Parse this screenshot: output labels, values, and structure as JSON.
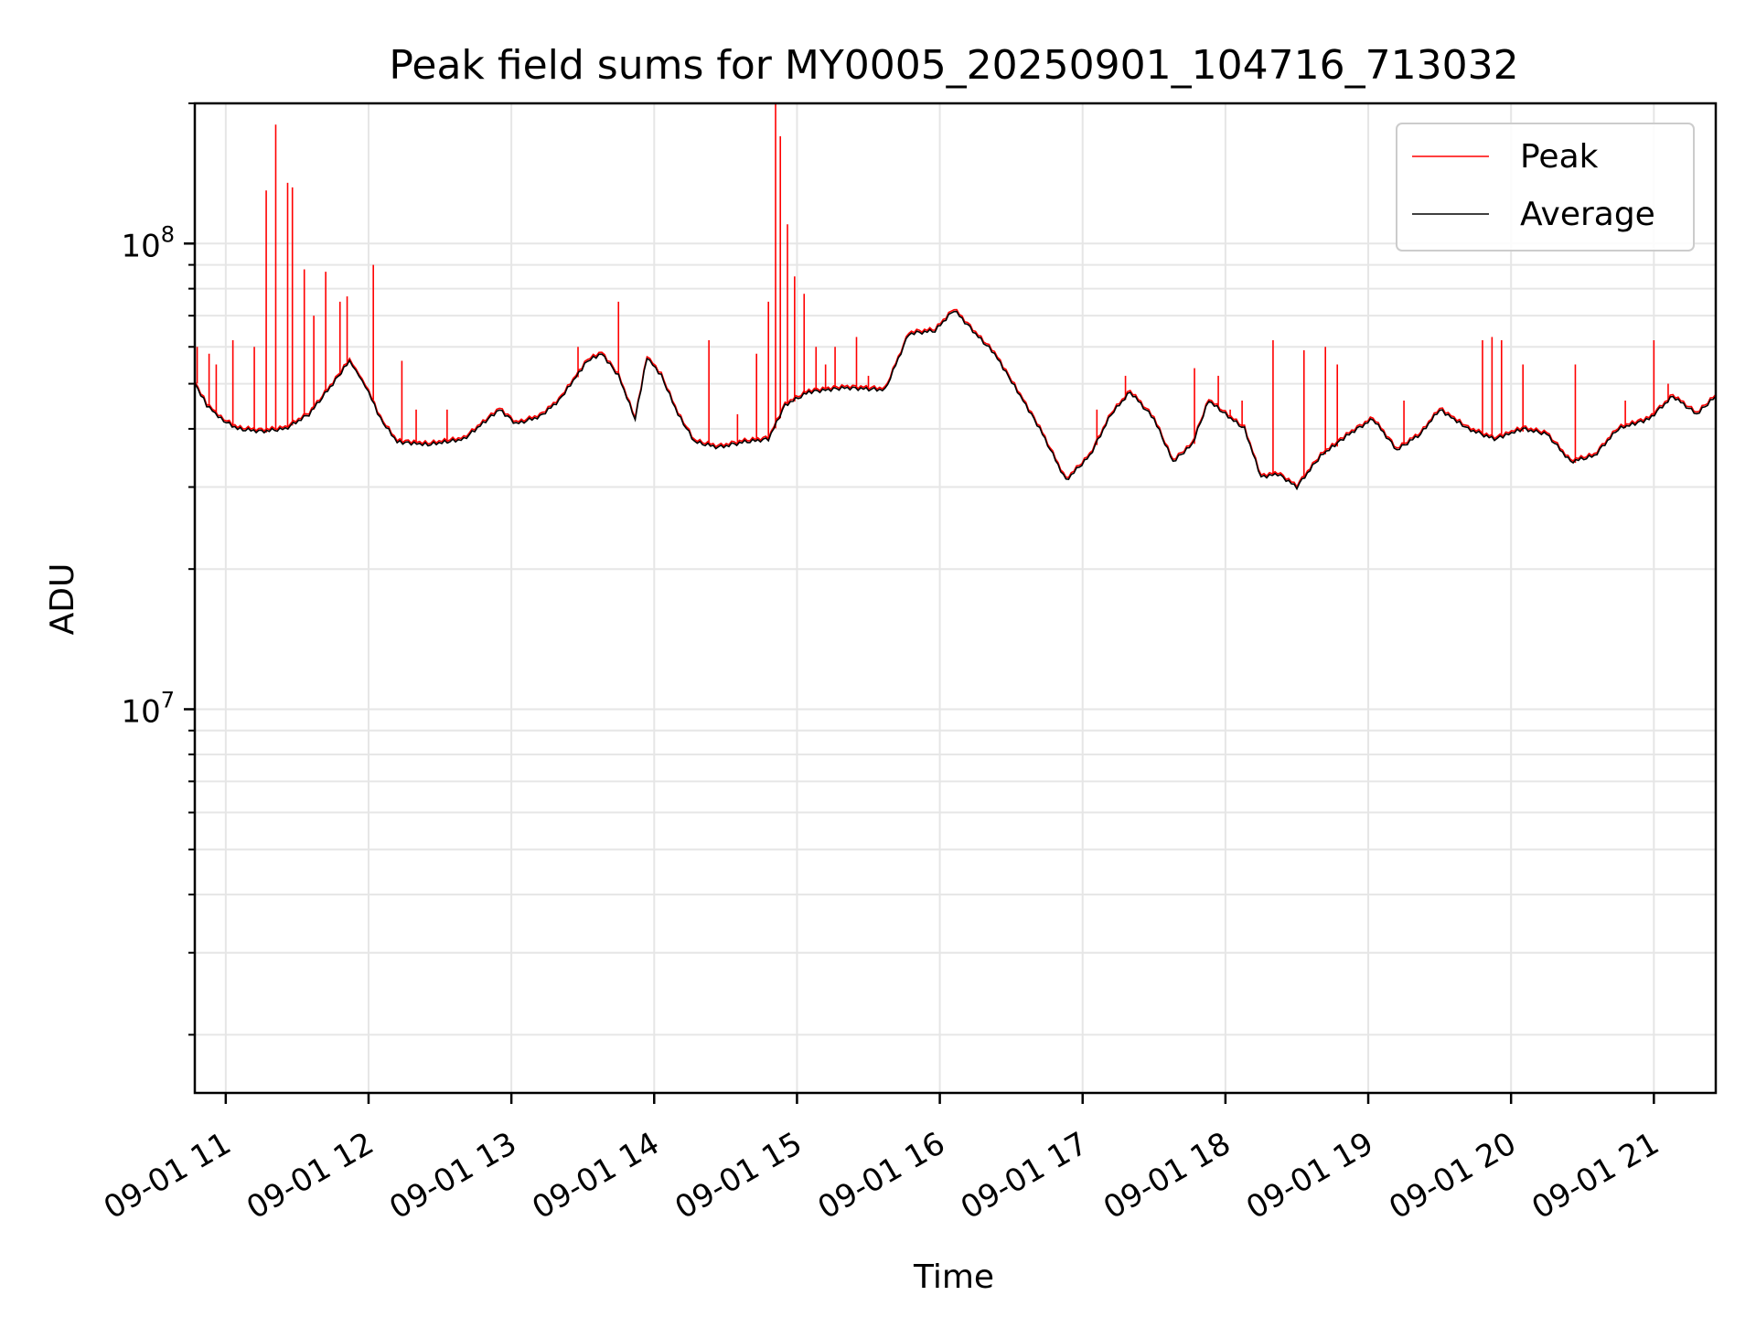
{
  "chart_data": {
    "type": "line",
    "title": "Peak field sums for MY0005_20250901_104716_713032",
    "xlabel": "Time",
    "ylabel": "ADU",
    "y_scale": "log",
    "ylim": [
      1500000,
      200000000
    ],
    "xlim": [
      "2025-09-01 10:47",
      "2025-09-01 21:26"
    ],
    "grid": true,
    "legend_position": "upper-right",
    "x_ticks": [
      {
        "x": "2025-09-01 11:00",
        "label": "09-01 11"
      },
      {
        "x": "2025-09-01 12:00",
        "label": "09-01 12"
      },
      {
        "x": "2025-09-01 13:00",
        "label": "09-01 13"
      },
      {
        "x": "2025-09-01 14:00",
        "label": "09-01 14"
      },
      {
        "x": "2025-09-01 15:00",
        "label": "09-01 15"
      },
      {
        "x": "2025-09-01 16:00",
        "label": "09-01 16"
      },
      {
        "x": "2025-09-01 17:00",
        "label": "09-01 17"
      },
      {
        "x": "2025-09-01 18:00",
        "label": "09-01 18"
      },
      {
        "x": "2025-09-01 19:00",
        "label": "09-01 19"
      },
      {
        "x": "2025-09-01 20:00",
        "label": "09-01 20"
      },
      {
        "x": "2025-09-01 21:00",
        "label": "09-01 21"
      }
    ],
    "y_ticks": [
      {
        "value": 10000000,
        "base": "10",
        "exp": "7"
      },
      {
        "value": 100000000,
        "base": "10",
        "exp": "8"
      }
    ],
    "series": [
      {
        "name": "Average",
        "color": "#000000",
        "points": [
          [
            "2025-09-01 10:47",
            50000000
          ],
          [
            "2025-09-01 10:52",
            45000000
          ],
          [
            "2025-09-01 10:58",
            42000000
          ],
          [
            "2025-09-01 11:05",
            40000000
          ],
          [
            "2025-09-01 11:15",
            39500000
          ],
          [
            "2025-09-01 11:25",
            40000000
          ],
          [
            "2025-09-01 11:35",
            43000000
          ],
          [
            "2025-09-01 11:45",
            50000000
          ],
          [
            "2025-09-01 11:52",
            56000000
          ],
          [
            "2025-09-01 11:56",
            52000000
          ],
          [
            "2025-09-01 12:00",
            48000000
          ],
          [
            "2025-09-01 12:05",
            42000000
          ],
          [
            "2025-09-01 12:12",
            37500000
          ],
          [
            "2025-09-01 12:25",
            37000000
          ],
          [
            "2025-09-01 12:40",
            38000000
          ],
          [
            "2025-09-01 12:55",
            44000000
          ],
          [
            "2025-09-01 13:02",
            41000000
          ],
          [
            "2025-09-01 13:12",
            42500000
          ],
          [
            "2025-09-01 13:20",
            46000000
          ],
          [
            "2025-09-01 13:32",
            56000000
          ],
          [
            "2025-09-01 13:38",
            58000000
          ],
          [
            "2025-09-01 13:45",
            52000000
          ],
          [
            "2025-09-01 13:52",
            42000000
          ],
          [
            "2025-09-01 13:57",
            57000000
          ],
          [
            "2025-09-01 14:03",
            52000000
          ],
          [
            "2025-09-01 14:10",
            43000000
          ],
          [
            "2025-09-01 14:17",
            37500000
          ],
          [
            "2025-09-01 14:27",
            36500000
          ],
          [
            "2025-09-01 14:38",
            37500000
          ],
          [
            "2025-09-01 14:48",
            38000000
          ],
          [
            "2025-09-01 14:55",
            45000000
          ],
          [
            "2025-09-01 15:05",
            48000000
          ],
          [
            "2025-09-01 15:20",
            49000000
          ],
          [
            "2025-09-01 15:37",
            48500000
          ],
          [
            "2025-09-01 15:47",
            64000000
          ],
          [
            "2025-09-01 15:58",
            65000000
          ],
          [
            "2025-09-01 16:06",
            72000000
          ],
          [
            "2025-09-01 16:15",
            64000000
          ],
          [
            "2025-09-01 16:23",
            58000000
          ],
          [
            "2025-09-01 16:35",
            46000000
          ],
          [
            "2025-09-01 16:42",
            40000000
          ],
          [
            "2025-09-01 16:53",
            31000000
          ],
          [
            "2025-09-01 17:03",
            35000000
          ],
          [
            "2025-09-01 17:12",
            43000000
          ],
          [
            "2025-09-01 17:20",
            48000000
          ],
          [
            "2025-09-01 17:30",
            42000000
          ],
          [
            "2025-09-01 17:38",
            34000000
          ],
          [
            "2025-09-01 17:46",
            37000000
          ],
          [
            "2025-09-01 17:53",
            46000000
          ],
          [
            "2025-09-01 18:00",
            43000000
          ],
          [
            "2025-09-01 18:08",
            40000000
          ],
          [
            "2025-09-01 18:15",
            31500000
          ],
          [
            "2025-09-01 18:22",
            32000000
          ],
          [
            "2025-09-01 18:30",
            30000000
          ],
          [
            "2025-09-01 18:40",
            35000000
          ],
          [
            "2025-09-01 18:52",
            39000000
          ],
          [
            "2025-09-01 19:02",
            42000000
          ],
          [
            "2025-09-01 19:12",
            36000000
          ],
          [
            "2025-09-01 19:22",
            39000000
          ],
          [
            "2025-09-01 19:30",
            44000000
          ],
          [
            "2025-09-01 19:42",
            40000000
          ],
          [
            "2025-09-01 19:53",
            38000000
          ],
          [
            "2025-09-01 20:05",
            40000000
          ],
          [
            "2025-09-01 20:15",
            39000000
          ],
          [
            "2025-09-01 20:25",
            34000000
          ],
          [
            "2025-09-01 20:35",
            35000000
          ],
          [
            "2025-09-01 20:45",
            40000000
          ],
          [
            "2025-09-01 20:58",
            42000000
          ],
          [
            "2025-09-01 21:08",
            47000000
          ],
          [
            "2025-09-01 21:18",
            43000000
          ],
          [
            "2025-09-01 21:26",
            47000000
          ]
        ]
      },
      {
        "name": "Peak",
        "color": "#ff0000",
        "spikes": [
          [
            "2025-09-01 10:48",
            60000000
          ],
          [
            "2025-09-01 10:53",
            58000000
          ],
          [
            "2025-09-01 10:56",
            55000000
          ],
          [
            "2025-09-01 11:03",
            62000000
          ],
          [
            "2025-09-01 11:12",
            60000000
          ],
          [
            "2025-09-01 11:17",
            130000000
          ],
          [
            "2025-09-01 11:21",
            180000000
          ],
          [
            "2025-09-01 11:26",
            135000000
          ],
          [
            "2025-09-01 11:28",
            132000000
          ],
          [
            "2025-09-01 11:33",
            88000000
          ],
          [
            "2025-09-01 11:37",
            70000000
          ],
          [
            "2025-09-01 11:42",
            87000000
          ],
          [
            "2025-09-01 11:48",
            75000000
          ],
          [
            "2025-09-01 11:51",
            77000000
          ],
          [
            "2025-09-01 12:02",
            90000000
          ],
          [
            "2025-09-01 12:14",
            56000000
          ],
          [
            "2025-09-01 12:20",
            44000000
          ],
          [
            "2025-09-01 12:33",
            44000000
          ],
          [
            "2025-09-01 13:28",
            60000000
          ],
          [
            "2025-09-01 13:45",
            75000000
          ],
          [
            "2025-09-01 14:23",
            62000000
          ],
          [
            "2025-09-01 14:35",
            43000000
          ],
          [
            "2025-09-01 14:43",
            58000000
          ],
          [
            "2025-09-01 14:48",
            75000000
          ],
          [
            "2025-09-01 14:51",
            200000000
          ],
          [
            "2025-09-01 14:53",
            170000000
          ],
          [
            "2025-09-01 14:56",
            110000000
          ],
          [
            "2025-09-01 14:59",
            85000000
          ],
          [
            "2025-09-01 15:03",
            78000000
          ],
          [
            "2025-09-01 15:08",
            60000000
          ],
          [
            "2025-09-01 15:12",
            55000000
          ],
          [
            "2025-09-01 15:16",
            60000000
          ],
          [
            "2025-09-01 15:25",
            63000000
          ],
          [
            "2025-09-01 15:30",
            52000000
          ],
          [
            "2025-09-01 17:06",
            44000000
          ],
          [
            "2025-09-01 17:18",
            52000000
          ],
          [
            "2025-09-01 17:47",
            54000000
          ],
          [
            "2025-09-01 17:57",
            52000000
          ],
          [
            "2025-09-01 18:02",
            44000000
          ],
          [
            "2025-09-01 18:07",
            46000000
          ],
          [
            "2025-09-01 18:20",
            62000000
          ],
          [
            "2025-09-01 18:33",
            59000000
          ],
          [
            "2025-09-01 18:42",
            60000000
          ],
          [
            "2025-09-01 18:47",
            55000000
          ],
          [
            "2025-09-01 19:15",
            46000000
          ],
          [
            "2025-09-01 19:48",
            62000000
          ],
          [
            "2025-09-01 19:52",
            63000000
          ],
          [
            "2025-09-01 19:56",
            62000000
          ],
          [
            "2025-09-01 20:05",
            55000000
          ],
          [
            "2025-09-01 20:27",
            55000000
          ],
          [
            "2025-09-01 20:48",
            46000000
          ],
          [
            "2025-09-01 21:00",
            62000000
          ],
          [
            "2025-09-01 21:06",
            50000000
          ]
        ]
      }
    ]
  }
}
